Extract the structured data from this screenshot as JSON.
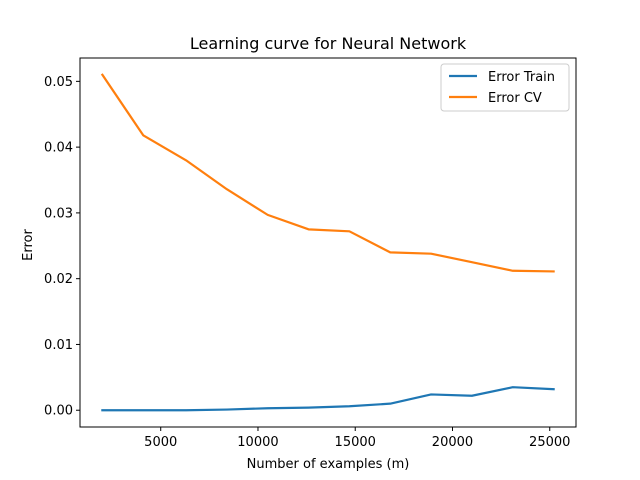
{
  "chart_data": {
    "type": "line",
    "title": "Learning curve for Neural Network",
    "xlabel": "Number of examples (m)",
    "ylabel": "Error",
    "xlim": [
      850,
      26350
    ],
    "ylim": [
      -0.00255,
      0.05355
    ],
    "xticks": [
      5000,
      10000,
      15000,
      20000,
      25000
    ],
    "yticks": [
      0.0,
      0.01,
      0.02,
      0.03,
      0.04,
      0.05
    ],
    "xtick_labels": [
      "5000",
      "10000",
      "15000",
      "20000",
      "25000"
    ],
    "ytick_labels": [
      "0.00",
      "0.01",
      "0.02",
      "0.03",
      "0.04",
      "0.05"
    ],
    "grid": false,
    "legend_position": "top-right",
    "x": [
      2000,
      4100,
      6300,
      8400,
      10500,
      12600,
      14700,
      16800,
      18900,
      21000,
      23100,
      25200
    ],
    "series": [
      {
        "name": "Error Train",
        "color": "#1f77b4",
        "values": [
          0.0,
          0.0,
          0.0,
          0.0001,
          0.0003,
          0.0004,
          0.0006,
          0.001,
          0.0024,
          0.0022,
          0.0035,
          0.0032
        ]
      },
      {
        "name": "Error CV",
        "color": "#ff7f0e",
        "values": [
          0.051,
          0.0418,
          0.038,
          0.0336,
          0.0297,
          0.0275,
          0.0272,
          0.024,
          0.0238,
          0.0225,
          0.0212,
          0.0211
        ]
      }
    ]
  }
}
